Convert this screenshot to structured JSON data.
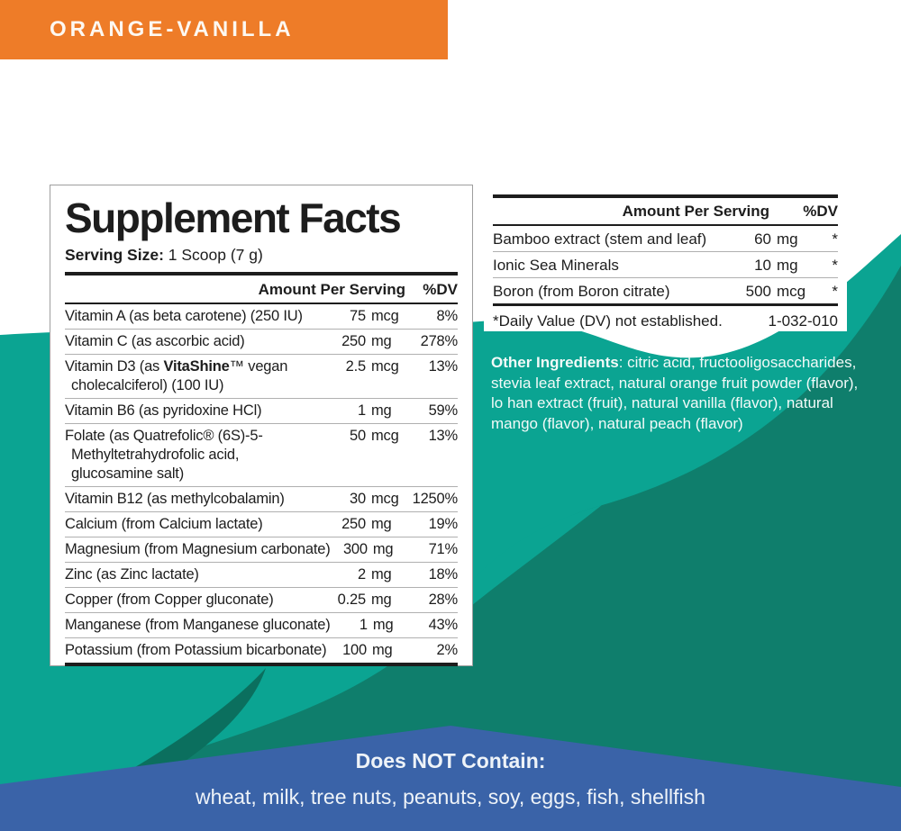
{
  "banner": {
    "label": "ORANGE-VANILLA"
  },
  "colors": {
    "banner_bg": "#ee7c28",
    "teal_light": "#0ba492",
    "teal_dark": "#0f7e6c",
    "teal_darker": "#0b6f5e",
    "bottom_band_blue": "#3a63a8",
    "ink": "#1d1d1d"
  },
  "facts": {
    "title": "Supplement Facts",
    "serving_label": "Serving Size:",
    "serving_value": "1 Scoop (7 g)",
    "col_amount": "Amount Per Serving",
    "col_dv": "%DV",
    "rows": [
      {
        "name": "Vitamin A (as beta carotene) (250 IU)",
        "amount": "75",
        "unit": "mcg",
        "dv": "8%"
      },
      {
        "name": "Vitamin C (as ascorbic acid)",
        "amount": "250",
        "unit": "mg",
        "dv": "278%"
      },
      {
        "name": [
          {
            "text": "Vitamin D3 (as "
          },
          {
            "text": "VitaShine",
            "bold": true
          },
          {
            "text": "™ vegan\ncholecalciferol) (100 IU)"
          }
        ],
        "amount": "2.5",
        "unit": "mcg",
        "dv": "13%"
      },
      {
        "name": "Vitamin B6 (as pyridoxine HCl)",
        "amount": "1",
        "unit": "mg",
        "dv": "59%"
      },
      {
        "name": "Folate (as Quatrefolic® (6S)-5-\nMethyltetrahydrofolic acid,\nglucosamine salt)",
        "amount": "50",
        "unit": "mcg",
        "dv": "13%"
      },
      {
        "name": "Vitamin B12 (as methylcobalamin)",
        "amount": "30",
        "unit": "mcg",
        "dv": "1250%"
      },
      {
        "name": "Calcium (from Calcium lactate)",
        "amount": "250",
        "unit": "mg",
        "dv": "19%"
      },
      {
        "name": "Magnesium (from Magnesium carbonate)",
        "amount": "300",
        "unit": "mg",
        "dv": "71%"
      },
      {
        "name": "Zinc (as Zinc lactate)",
        "amount": "2",
        "unit": "mg",
        "dv": "18%"
      },
      {
        "name": "Copper (from Copper gluconate)",
        "amount": "0.25",
        "unit": "mg",
        "dv": "28%"
      },
      {
        "name": "Manganese (from Manganese gluconate)",
        "amount": "1",
        "unit": "mg",
        "dv": "43%"
      },
      {
        "name": "Potassium (from Potassium bicarbonate)",
        "amount": "100",
        "unit": "mg",
        "dv": "2%"
      }
    ]
  },
  "right_table": {
    "col_amount": "Amount Per Serving",
    "col_dv": "%DV",
    "rows": [
      {
        "name": "Bamboo extract (stem and leaf)",
        "amount": "60",
        "unit": "mg",
        "dv": "*"
      },
      {
        "name": "Ionic Sea Minerals",
        "amount": "10",
        "unit": "mg",
        "dv": "*"
      },
      {
        "name": "Boron (from Boron citrate)",
        "amount": "500",
        "unit": "mcg",
        "dv": "*"
      }
    ],
    "footnote": "*Daily Value (DV) not established.",
    "code": "1-032-010"
  },
  "other_ingredients": {
    "label": "Other Ingredients",
    "text": ": citric acid, fructooligosaccharides, stevia leaf extract, natural orange fruit powder (flavor), lo han extract (fruit), natural vanilla (flavor), natural mango (flavor), natural peach (flavor)"
  },
  "bottom": {
    "title": "Does NOT Contain:",
    "items": "wheat, milk, tree nuts, peanuts, soy, eggs, fish, shellfish"
  }
}
